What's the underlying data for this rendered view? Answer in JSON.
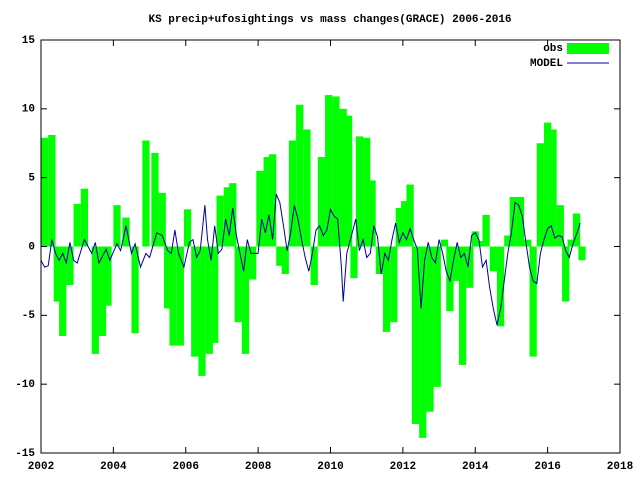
{
  "chart_data": {
    "type": "bar+line",
    "title": "KS precip+ufosightings vs mass changes(GRACE) 2006-2016",
    "xlim": [
      2002,
      2018
    ],
    "xticks": [
      2002,
      2004,
      2006,
      2008,
      2010,
      2012,
      2014,
      2016,
      2018
    ],
    "ylim": [
      -15,
      15
    ],
    "yticks": [
      -15,
      -10,
      -5,
      0,
      5,
      10,
      15
    ],
    "legend": "top-right",
    "series": [
      {
        "name": "obs",
        "color": "#00ff00",
        "x": [
          2002.1,
          2002.3,
          2002.45,
          2002.6,
          2002.8,
          2003.0,
          2003.2,
          2003.5,
          2003.7,
          2003.85,
          2004.1,
          2004.35,
          2004.6,
          2004.9,
          2005.15,
          2005.35,
          2005.5,
          2005.65,
          2005.85,
          2006.05,
          2006.25,
          2006.45,
          2006.65,
          2006.8,
          2006.95,
          2007.15,
          2007.3,
          2007.45,
          2007.65,
          2007.85,
          2008.05,
          2008.25,
          2008.4,
          2008.6,
          2008.75,
          2008.95,
          2009.15,
          2009.35,
          2009.55,
          2009.75,
          2009.95,
          2010.15,
          2010.35,
          2010.5,
          2010.65,
          2010.8,
          2011.0,
          2011.15,
          2011.35,
          2011.55,
          2011.75,
          2011.9,
          2012.05,
          2012.2,
          2012.35,
          2012.55,
          2012.75,
          2012.95,
          2013.15,
          2013.3,
          2013.45,
          2013.65,
          2013.85,
          2014.0,
          2014.15,
          2014.3,
          2014.5,
          2014.7,
          2014.9,
          2015.05,
          2015.25,
          2015.45,
          2015.6,
          2015.8,
          2016.0,
          2016.15,
          2016.35,
          2016.5,
          2016.65,
          2016.8,
          2016.95
        ],
        "values": [
          7.9,
          8.1,
          -4,
          -6.5,
          -2.8,
          3.1,
          4.2,
          -7.8,
          -6.5,
          -4.3,
          3,
          2.1,
          -6.3,
          7.7,
          6.8,
          3.9,
          -4.5,
          -7.2,
          -7.2,
          2.7,
          -8,
          -9.4,
          -7.8,
          -7,
          3.7,
          4.3,
          4.6,
          -5.5,
          -7.8,
          -2.4,
          5.5,
          6.5,
          6.7,
          -1.4,
          -2,
          7.7,
          10.3,
          8.5,
          -2.8,
          6.5,
          11,
          10.9,
          10,
          9.5,
          -2.3,
          8,
          7.9,
          4.8,
          -2,
          -6.2,
          -5.5,
          2.8,
          3.3,
          4.5,
          -12.9,
          -13.9,
          -12,
          -10.2,
          0.5,
          -4.7,
          -2.5,
          -8.6,
          -3,
          1.1,
          0.4,
          2.3,
          -1.8,
          -5.8,
          0.8,
          3.6,
          3.6,
          0.5,
          -8,
          7.5,
          9,
          8.5,
          3,
          -4,
          0.5,
          2.4,
          -1
        ]
      },
      {
        "name": "MODEL",
        "color": "#0000a0",
        "x": [
          2002.0,
          2002.1,
          2002.2,
          2002.3,
          2002.4,
          2002.5,
          2002.6,
          2002.7,
          2002.8,
          2002.9,
          2003.0,
          2003.2,
          2003.4,
          2003.5,
          2003.6,
          2003.8,
          2003.9,
          2004.1,
          2004.2,
          2004.35,
          2004.5,
          2004.6,
          2004.75,
          2004.9,
          2005.0,
          2005.2,
          2005.35,
          2005.5,
          2005.6,
          2005.7,
          2005.8,
          2005.95,
          2006.1,
          2006.2,
          2006.3,
          2006.4,
          2006.53,
          2006.6,
          2006.7,
          2006.8,
          2006.9,
          2007.0,
          2007.1,
          2007.2,
          2007.3,
          2007.4,
          2007.5,
          2007.6,
          2007.7,
          2007.8,
          2008.0,
          2008.1,
          2008.2,
          2008.3,
          2008.4,
          2008.5,
          2008.6,
          2008.7,
          2008.8,
          2008.9,
          2009.0,
          2009.1,
          2009.2,
          2009.3,
          2009.4,
          2009.5,
          2009.6,
          2009.7,
          2009.8,
          2009.9,
          2010.0,
          2010.1,
          2010.2,
          2010.3,
          2010.35,
          2010.45,
          2010.6,
          2010.7,
          2010.8,
          2010.9,
          2011.0,
          2011.1,
          2011.2,
          2011.3,
          2011.4,
          2011.5,
          2011.6,
          2011.7,
          2011.8,
          2011.9,
          2012.0,
          2012.1,
          2012.2,
          2012.3,
          2012.4,
          2012.5,
          2012.6,
          2012.7,
          2012.8,
          2012.9,
          2013.0,
          2013.1,
          2013.2,
          2013.3,
          2013.4,
          2013.5,
          2013.6,
          2013.7,
          2013.8,
          2013.9,
          2014.0,
          2014.1,
          2014.2,
          2014.3,
          2014.4,
          2014.5,
          2014.6,
          2014.7,
          2014.8,
          2014.9,
          2015.0,
          2015.1,
          2015.2,
          2015.3,
          2015.4,
          2015.5,
          2015.6,
          2015.7,
          2015.8,
          2015.9,
          2016.0,
          2016.1,
          2016.2,
          2016.3,
          2016.4,
          2016.5,
          2016.6,
          2016.7,
          2016.8,
          2016.9
        ],
        "values": [
          -1,
          -1.5,
          -1.4,
          0.5,
          -0.5,
          -1,
          -0.5,
          -1.2,
          0.3,
          -1,
          -1.2,
          0.5,
          -0.5,
          0.3,
          -1.2,
          -0.2,
          -1,
          0.2,
          -0.3,
          1.5,
          -0.5,
          0.2,
          -1.5,
          -0.5,
          -0.8,
          1,
          0.8,
          -0.3,
          -0.5,
          1.2,
          -0.5,
          -1.5,
          0.3,
          0.5,
          -0.8,
          -0.3,
          3,
          0.5,
          -1,
          1.5,
          -0.5,
          -0.2,
          2,
          0.8,
          2.8,
          0.8,
          -0.5,
          -1.8,
          0.5,
          -0.5,
          -0.5,
          2,
          1,
          2.3,
          0.5,
          3.8,
          3.2,
          1.5,
          -0.3,
          1,
          3,
          2,
          0.5,
          -0.8,
          -1.8,
          -0.5,
          1.2,
          1.5,
          0.8,
          1.2,
          2.7,
          2.2,
          2,
          -1.5,
          -4,
          -0.5,
          1,
          2,
          -0.3,
          0.5,
          -0.8,
          -0.5,
          1.5,
          0.7,
          -2,
          -0.5,
          -1,
          0.5,
          1.7,
          0.3,
          1,
          0.5,
          1.3,
          0.5,
          -0.2,
          -4.5,
          -1,
          0.3,
          -0.8,
          -1.2,
          0.5,
          -0.5,
          -1.8,
          -2.5,
          -1,
          0.3,
          -0.8,
          -0.5,
          -1.5,
          0.8,
          1,
          0.5,
          -1.5,
          -1,
          -3,
          -4.5,
          -5.7,
          -4.5,
          -2.5,
          -0.5,
          1,
          3.2,
          3,
          2.2,
          0.3,
          -1.5,
          -2.5,
          -2.7,
          -0.5,
          0.5,
          1.3,
          1.5,
          0.6,
          0.8,
          0.7,
          -0.3,
          -0.8,
          0.2,
          0.9,
          1.7
        ]
      }
    ]
  }
}
